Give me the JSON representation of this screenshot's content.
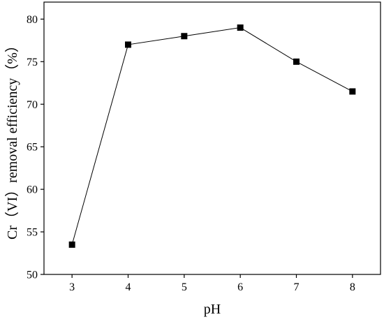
{
  "chart_data": {
    "type": "line",
    "title": "",
    "xlabel": "pH",
    "ylabel": "Cr（VI）removal efficiency（%）",
    "x": [
      3,
      4,
      5,
      6,
      7,
      8
    ],
    "series": [
      {
        "values": [
          53.5,
          77,
          78,
          79,
          75,
          71.5
        ],
        "marker": "square"
      }
    ],
    "xlim": [
      2.5,
      8.5
    ],
    "ylim": [
      50,
      82
    ],
    "xticks": [
      3,
      4,
      5,
      6,
      7,
      8
    ],
    "yticks": [
      50,
      55,
      60,
      65,
      70,
      75,
      80
    ],
    "grid": false,
    "colors": {
      "line": "#000000",
      "marker": "#000000",
      "axis": "#000000"
    }
  }
}
